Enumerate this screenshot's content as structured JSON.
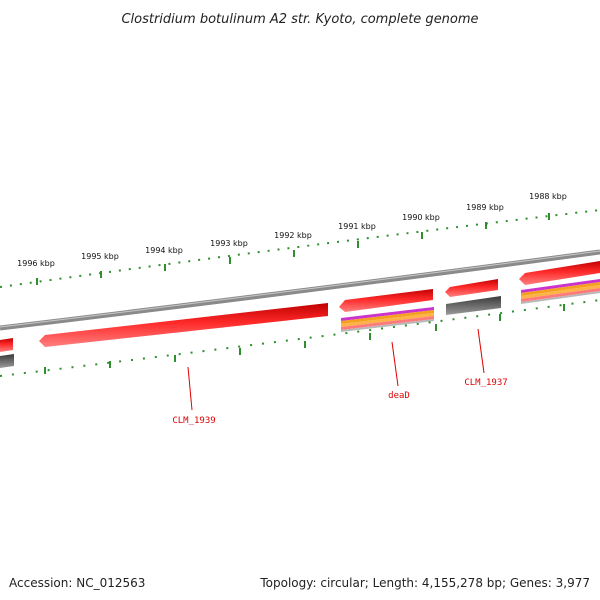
{
  "title": "Clostridium botulinum A2 str. Kyoto, complete genome",
  "footer": {
    "accession": "Accession: NC_012563",
    "summary": "Topology: circular; Length: 4,155,278 bp; Genes: 3,977"
  },
  "ticks": [
    {
      "label": "1996 kbp"
    },
    {
      "label": "1995 kbp"
    },
    {
      "label": "1994 kbp"
    },
    {
      "label": "1993 kbp"
    },
    {
      "label": "1992 kbp"
    },
    {
      "label": "1991 kbp"
    },
    {
      "label": "1990 kbp"
    },
    {
      "label": "1989 kbp"
    },
    {
      "label": "1988 kbp"
    }
  ],
  "genes": [
    {
      "name": "CLM_1939"
    },
    {
      "name": "deaD"
    },
    {
      "name": "CLM_1937"
    }
  ],
  "colors": {
    "gene": "#e00000",
    "gene_light": "#ff6a6a",
    "backbone": "#808080",
    "tick": "#2f8f2f",
    "dark_feature": "#555555",
    "magenta": "#cc33cc",
    "orange": "#f4a020"
  }
}
